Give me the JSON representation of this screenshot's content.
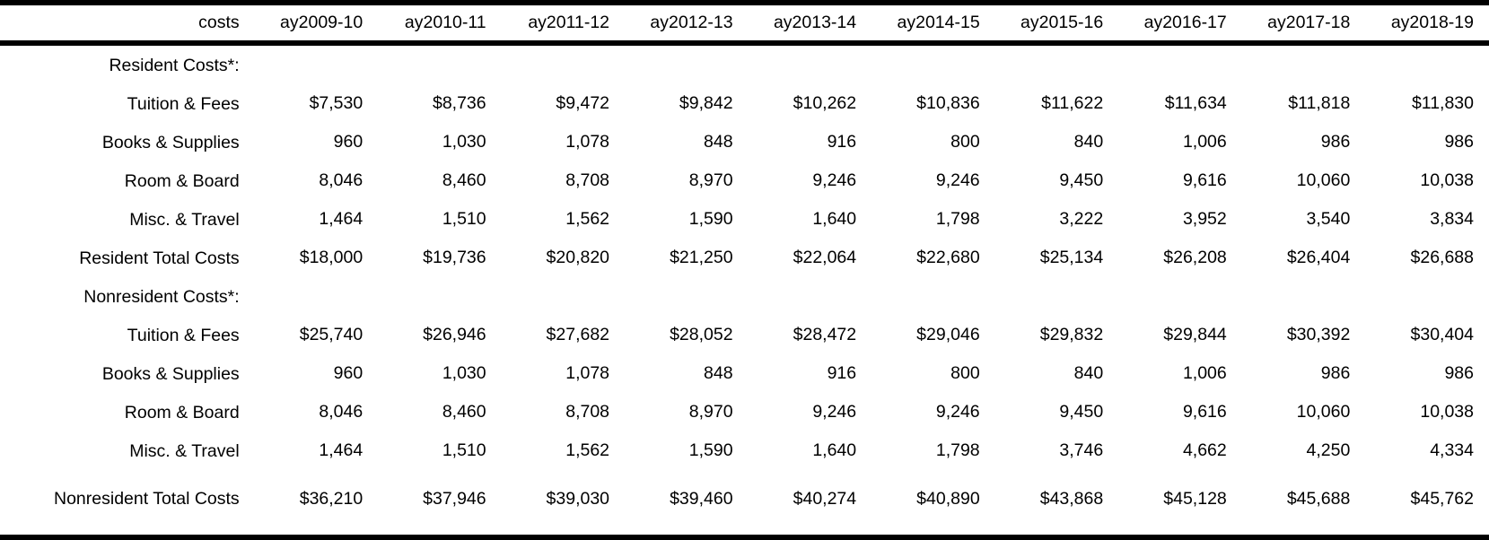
{
  "chart_data": {
    "type": "table",
    "columns": [
      "costs",
      "ay2009-10",
      "ay2010-11",
      "ay2011-12",
      "ay2012-13",
      "ay2013-14",
      "ay2014-15",
      "ay2015-16",
      "ay2016-17",
      "ay2017-18",
      "ay2018-19"
    ],
    "rows": [
      {
        "label": "Resident Costs*:",
        "cells": [
          "",
          "",
          "",
          "",
          "",
          "",
          "",
          "",
          "",
          ""
        ]
      },
      {
        "label": "Tuition & Fees",
        "cells": [
          "$7,530",
          "$8,736",
          "$9,472",
          "$9,842",
          "$10,262",
          "$10,836",
          "$11,622",
          "$11,634",
          "$11,818",
          "$11,830"
        ]
      },
      {
        "label": "Books & Supplies",
        "cells": [
          "960",
          "1,030",
          "1,078",
          "848",
          "916",
          "800",
          "840",
          "1,006",
          "986",
          "986"
        ]
      },
      {
        "label": "Room & Board",
        "cells": [
          "8,046",
          "8,460",
          "8,708",
          "8,970",
          "9,246",
          "9,246",
          "9,450",
          "9,616",
          "10,060",
          "10,038"
        ]
      },
      {
        "label": "Misc. & Travel",
        "cells": [
          "1,464",
          "1,510",
          "1,562",
          "1,590",
          "1,640",
          "1,798",
          "3,222",
          "3,952",
          "3,540",
          "3,834"
        ]
      },
      {
        "label": "Resident Total Costs",
        "cells": [
          "$18,000",
          "$19,736",
          "$20,820",
          "$21,250",
          "$22,064",
          "$22,680",
          "$25,134",
          "$26,208",
          "$26,404",
          "$26,688"
        ]
      },
      {
        "label": "Nonresident Costs*:",
        "cells": [
          "",
          "",
          "",
          "",
          "",
          "",
          "",
          "",
          "",
          ""
        ]
      },
      {
        "label": "Tuition & Fees",
        "cells": [
          "$25,740",
          "$26,946",
          "$27,682",
          "$28,052",
          "$28,472",
          "$29,046",
          "$29,832",
          "$29,844",
          "$30,392",
          "$30,404"
        ]
      },
      {
        "label": "Books & Supplies",
        "cells": [
          "960",
          "1,030",
          "1,078",
          "848",
          "916",
          "800",
          "840",
          "1,006",
          "986",
          "986"
        ]
      },
      {
        "label": "Room & Board",
        "cells": [
          "8,046",
          "8,460",
          "8,708",
          "8,970",
          "9,246",
          "9,246",
          "9,450",
          "9,616",
          "10,060",
          "10,038"
        ]
      },
      {
        "label": "Misc. & Travel",
        "cells": [
          "1,464",
          "1,510",
          "1,562",
          "1,590",
          "1,640",
          "1,798",
          "3,746",
          "4,662",
          "4,250",
          "4,334"
        ]
      },
      {
        "label": "Nonresident Total Costs",
        "cells": [
          "$36,210",
          "$37,946",
          "$39,030",
          "$39,460",
          "$40,274",
          "$40,890",
          "$43,868",
          "$45,128",
          "$45,688",
          "$45,762"
        ]
      }
    ]
  }
}
